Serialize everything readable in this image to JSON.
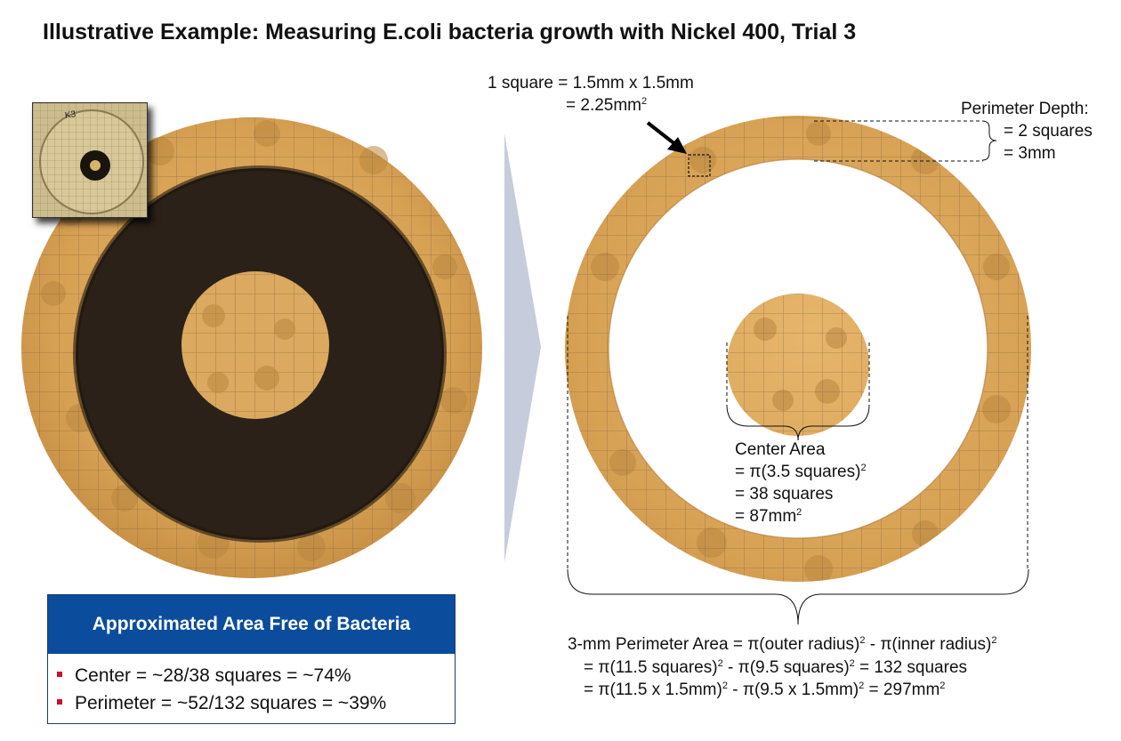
{
  "title": "Illustrative Example: Measuring E.coli bacteria growth with Nickel 400, Trial 3",
  "plate_label": "K3",
  "square_note": {
    "line1": "1 square = 1.5mm x 1.5mm",
    "line2": "= 2.25mm",
    "line2_sup": "2"
  },
  "perimeter_depth": {
    "label": "Perimeter Depth:",
    "line1": "= 2 squares",
    "line2": "= 3mm"
  },
  "center_area": {
    "label": "Center Area",
    "line1_a": "= π(3.5 squares)",
    "line1_sup": "2",
    "line2": "= 38 squares",
    "line3_a": "= 87mm",
    "line3_sup": "2"
  },
  "perimeter_area": {
    "l1_a": "3-mm Perimeter Area = π(outer radius)",
    "l1_s1": "2",
    "l1_b": " - π(inner radius)",
    "l1_s2": "2",
    "l2_a": "= π(11.5 squares)",
    "l2_s1": "2",
    "l2_b": " - π(9.5 squares)",
    "l2_s2": "2",
    "l2_c": " = 132 squares",
    "l3_a": "= π(11.5 x 1.5mm)",
    "l3_s1": "2",
    "l3_b": " - π(9.5 x 1.5mm)",
    "l3_s2": "2",
    "l3_c": " = 297mm",
    "l3_s3": "2"
  },
  "summary": {
    "header": "Approximated Area Free of Bacteria",
    "items": [
      "Center = ~28/38 squares = ~74%",
      "Perimeter = ~52/132 squares = ~39%"
    ]
  },
  "colors": {
    "agar": "#d9a55a",
    "zone": "#2b2118",
    "summary_header": "#0b4d9c",
    "bullet": "#c8102e",
    "arrow": "#c7ccdc"
  }
}
